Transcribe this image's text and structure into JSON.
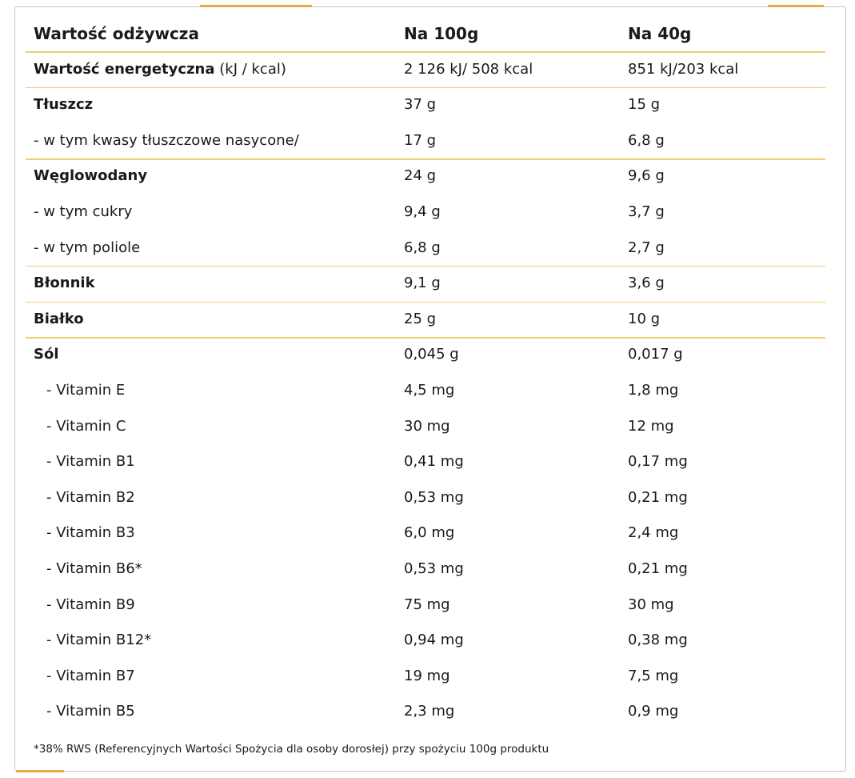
{
  "table": {
    "header": [
      "Wartość odżywcza",
      "Na 100g",
      "Na 40g"
    ],
    "rows": [
      {
        "label": "Wartość energetyczna",
        "unit": "(kJ / kcal)",
        "values": [
          "2 126 kJ/ 508 kcal",
          "851 kJ/203 kcal"
        ],
        "bold": true,
        "separator_after": true
      },
      {
        "label": "Tłuszcz",
        "values": [
          "37 g",
          "15 g"
        ],
        "bold": true
      },
      {
        "label": "- w tym kwasy tłuszczowe nasycone/",
        "values": [
          "17 g",
          "6,8 g"
        ],
        "separator_after": true
      },
      {
        "label": "Węglowodany",
        "values": [
          "24 g",
          "9,6 g"
        ],
        "bold": true
      },
      {
        "label": "- w tym cukry",
        "values": [
          "9,4 g",
          "3,7 g"
        ]
      },
      {
        "label": "- w tym poliole",
        "values": [
          "6,8 g",
          "2,7 g"
        ],
        "separator_after": true
      },
      {
        "label": "Błonnik",
        "values": [
          "9,1 g",
          "3,6 g"
        ],
        "bold": true,
        "separator_after": true
      },
      {
        "label": "Białko",
        "values": [
          "25 g",
          "10 g"
        ],
        "bold": true,
        "separator_after": true
      },
      {
        "label": "Sól",
        "values": [
          "0,045 g",
          "0,017 g"
        ],
        "bold": true
      },
      {
        "label": "- Vitamin E",
        "values": [
          "4,5 mg",
          "1,8 mg"
        ],
        "indent": true
      },
      {
        "label": "- Vitamin C",
        "values": [
          "30 mg",
          "12 mg"
        ],
        "indent": true
      },
      {
        "label": "- Vitamin B1",
        "values": [
          "0,41 mg",
          "0,17 mg"
        ],
        "indent": true
      },
      {
        "label": "- Vitamin B2",
        "values": [
          "0,53 mg",
          "0,21 mg"
        ],
        "indent": true
      },
      {
        "label": "- Vitamin B3",
        "values": [
          "6,0 mg",
          "2,4 mg"
        ],
        "indent": true
      },
      {
        "label": "- Vitamin B6*",
        "values": [
          "0,53 mg",
          "0,21 mg"
        ],
        "indent": true
      },
      {
        "label": "- Vitamin B9",
        "values": [
          "75 mg",
          "30 mg"
        ],
        "indent": true
      },
      {
        "label": "- Vitamin B12*",
        "values": [
          "0,94 mg",
          "0,38 mg"
        ],
        "indent": true
      },
      {
        "label": "- Vitamin B7",
        "values": [
          "19 mg",
          "7,5 mg"
        ],
        "indent": true
      },
      {
        "label": "- Vitamin B5",
        "values": [
          "2,3 mg",
          "0,9 mg"
        ],
        "indent": true
      }
    ],
    "footnote": "*38% RWS (Referencyjnych Wartości Spożycia dla osoby dorosłej) przy spożyciu 100g produktu"
  }
}
